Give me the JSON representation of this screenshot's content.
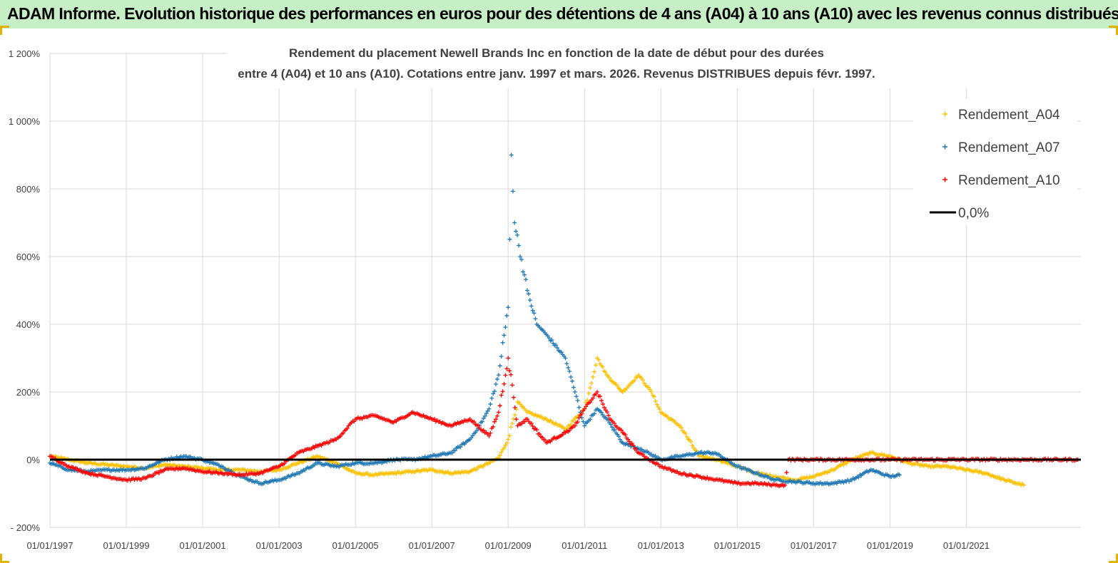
{
  "banner": {
    "text": "ADAM Informe. Evolution historique des performances en euros pour des détentions de 4 ans (A04) à 10 ans (A10) avec les revenus connus distribués"
  },
  "colors": {
    "banner_bg": "#c6efc6",
    "A04": "#ffc000",
    "A07": "#1f77b4",
    "A10": "#ff0000",
    "zero_line": "#000000",
    "grid": "#d9d9d9"
  },
  "chart_data": {
    "type": "scatter",
    "title_line1": "Rendement du placement Newell Brands Inc en fonction de la date de début pour des durées",
    "title_line2": "entre 4 (A04) et 10 ans (A10). Cotations entre janv. 1997 et mars. 2026. Revenus DISTRIBUES depuis févr. 1997.",
    "x_start": "1997-01-01",
    "x_end": "2023-12-31",
    "xlim_years": [
      1997.0,
      2024.0
    ],
    "ylim": [
      -200,
      1200
    ],
    "y_unit": "%",
    "y_ticks": [
      -200,
      0,
      200,
      400,
      600,
      800,
      1000,
      1200
    ],
    "y_tick_labels": [
      "- 200%",
      "0%",
      "200%",
      "400%",
      "600%",
      "800%",
      "1 000%",
      "1 200%"
    ],
    "x_ticks": [
      "01/01/1997",
      "01/01/1999",
      "01/01/2001",
      "01/01/2003",
      "01/01/2005",
      "01/01/2007",
      "01/01/2009",
      "01/01/2011",
      "01/01/2013",
      "01/01/2015",
      "01/01/2017",
      "01/01/2019",
      "01/01/2021"
    ],
    "x_tick_years": [
      1997,
      1999,
      2001,
      2003,
      2005,
      2007,
      2009,
      2011,
      2013,
      2015,
      2017,
      2019,
      2021
    ],
    "grid": true,
    "legend_position": "top-right",
    "legend": [
      "Rendement_A04",
      "Rendement_A07",
      "Rendement_A10",
      "0,0%"
    ],
    "series": [
      {
        "name": "Rendement_A04",
        "color": "#ffc000",
        "marker": "+",
        "x": [
          "1997-01",
          "1997-07",
          "1998-01",
          "1998-07",
          "1999-01",
          "1999-07",
          "2000-01",
          "2000-07",
          "2001-01",
          "2001-07",
          "2002-01",
          "2002-07",
          "2003-01",
          "2003-07",
          "2004-01",
          "2004-07",
          "2005-01",
          "2005-07",
          "2006-01",
          "2006-07",
          "2007-01",
          "2007-07",
          "2008-01",
          "2008-07",
          "2008-10",
          "2009-01",
          "2009-04",
          "2009-07",
          "2010-01",
          "2010-07",
          "2011-01",
          "2011-05",
          "2011-08",
          "2012-01",
          "2012-06",
          "2012-10",
          "2013-01",
          "2013-07",
          "2014-01",
          "2014-07",
          "2015-01",
          "2015-07",
          "2016-01",
          "2016-07",
          "2017-01",
          "2017-07",
          "2018-01",
          "2018-07",
          "2019-01",
          "2019-07",
          "2020-01",
          "2020-07",
          "2021-01",
          "2021-07",
          "2022-01",
          "2022-07"
        ],
        "y": [
          10,
          0,
          -10,
          -15,
          -20,
          -25,
          -15,
          -20,
          -25,
          -30,
          -30,
          -35,
          -30,
          -10,
          10,
          -10,
          -40,
          -45,
          -40,
          -35,
          -30,
          -40,
          -35,
          -10,
          5,
          60,
          170,
          140,
          120,
          90,
          150,
          300,
          250,
          200,
          250,
          200,
          140,
          100,
          10,
          0,
          -20,
          -40,
          -50,
          -60,
          -50,
          -30,
          0,
          20,
          10,
          -10,
          -20,
          -20,
          -30,
          -40,
          -60,
          -75
        ]
      },
      {
        "name": "Rendement_A07",
        "color": "#1f77b4",
        "marker": "+",
        "x": [
          "1997-01",
          "1997-07",
          "1998-01",
          "1998-07",
          "1999-01",
          "1999-07",
          "2000-01",
          "2000-07",
          "2001-01",
          "2001-07",
          "2002-01",
          "2002-07",
          "2003-01",
          "2003-07",
          "2004-01",
          "2004-07",
          "2005-01",
          "2005-07",
          "2006-01",
          "2006-07",
          "2007-01",
          "2007-07",
          "2008-01",
          "2008-04",
          "2008-07",
          "2008-10",
          "2009-01",
          "2009-02",
          "2009-03",
          "2009-07",
          "2009-10",
          "2010-01",
          "2010-07",
          "2010-10",
          "2011-01",
          "2011-05",
          "2011-08",
          "2012-01",
          "2012-07",
          "2013-01",
          "2013-07",
          "2014-01",
          "2014-06",
          "2015-01",
          "2015-07",
          "2016-01",
          "2016-07",
          "2017-01",
          "2017-07",
          "2018-01",
          "2018-07",
          "2019-01",
          "2019-04"
        ],
        "y": [
          -10,
          -30,
          -35,
          -30,
          -30,
          -25,
          0,
          10,
          0,
          -20,
          -50,
          -70,
          -60,
          -40,
          -10,
          -20,
          -10,
          -10,
          0,
          0,
          10,
          20,
          60,
          100,
          150,
          250,
          450,
          900,
          700,
          500,
          400,
          370,
          300,
          200,
          100,
          150,
          120,
          50,
          30,
          0,
          10,
          20,
          20,
          -20,
          -40,
          -60,
          -65,
          -70,
          -70,
          -60,
          -30,
          -50,
          -45
        ]
      },
      {
        "name": "Rendement_A10",
        "color": "#ff0000",
        "marker": "+",
        "x": [
          "1997-01",
          "1997-07",
          "1998-01",
          "1998-07",
          "1999-01",
          "1999-07",
          "2000-01",
          "2000-07",
          "2001-01",
          "2001-07",
          "2002-01",
          "2002-07",
          "2003-01",
          "2003-07",
          "2004-01",
          "2004-07",
          "2005-01",
          "2005-07",
          "2006-01",
          "2006-07",
          "2007-01",
          "2007-07",
          "2008-01",
          "2008-07",
          "2008-10",
          "2009-01",
          "2009-04",
          "2009-07",
          "2010-01",
          "2010-07",
          "2010-10",
          "2011-01",
          "2011-05",
          "2011-09",
          "2012-01",
          "2012-06",
          "2013-01",
          "2013-07",
          "2014-01",
          "2014-07",
          "2015-01",
          "2015-07",
          "2016-01",
          "2016-04",
          "2016-05",
          "2017-01",
          "2018-01",
          "2019-01",
          "2020-01",
          "2021-01",
          "2022-01",
          "2023-01",
          "2023-12"
        ],
        "y": [
          10,
          -20,
          -40,
          -50,
          -60,
          -55,
          -30,
          -25,
          -35,
          -40,
          -45,
          -40,
          -20,
          20,
          40,
          60,
          120,
          130,
          110,
          140,
          120,
          100,
          120,
          70,
          140,
          300,
          100,
          120,
          50,
          80,
          100,
          150,
          200,
          120,
          80,
          20,
          -20,
          -40,
          -50,
          -60,
          -70,
          -70,
          -75,
          -75,
          0,
          0,
          0,
          0,
          0,
          0,
          0,
          0,
          0
        ]
      }
    ],
    "reference_line": {
      "name": "0,0%",
      "y": 0,
      "color": "#000000"
    }
  }
}
